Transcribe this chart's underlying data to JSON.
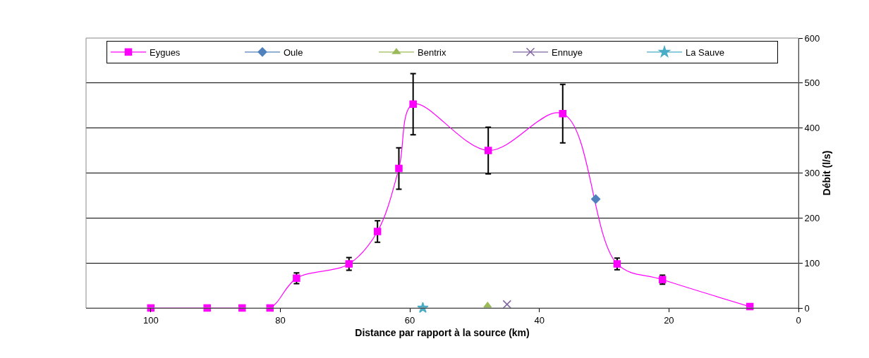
{
  "chart_data": {
    "type": "line",
    "xlabel": "Distance par rapport à la source (km)",
    "ylabel": "Débit (l/s)",
    "xlim": [
      110,
      0
    ],
    "xticks": [
      100,
      80,
      60,
      40,
      20,
      0
    ],
    "ylim": [
      0,
      600
    ],
    "yticks": [
      0,
      100,
      200,
      300,
      400,
      500,
      600
    ],
    "grid": "y",
    "legend": "top",
    "line_style": "solid",
    "series": [
      {
        "name": "Eygues",
        "color": "#ff00ff",
        "marker": "square",
        "x": [
          100,
          91.3,
          85.9,
          81.6,
          77.5,
          69.4,
          65,
          61.7,
          59.5,
          47.9,
          36.4,
          28,
          21,
          7.5
        ],
        "values": [
          0,
          0,
          0,
          0,
          66,
          98,
          170,
          310,
          453,
          350,
          432,
          98,
          63,
          3
        ],
        "errors": [
          null,
          null,
          null,
          null,
          12,
          14,
          24,
          46,
          68,
          52,
          65,
          13,
          10,
          null
        ]
      },
      {
        "name": "Oule",
        "color": "#4f81bd",
        "marker": "diamond",
        "x": [
          31.3
        ],
        "values": [
          242
        ]
      },
      {
        "name": "Bentrix",
        "color": "#9bbb59",
        "marker": "triangle",
        "x": [
          48
        ],
        "values": [
          5
        ]
      },
      {
        "name": "Ennuye",
        "color": "#8064a2",
        "marker": "cross",
        "x": [
          45
        ],
        "values": [
          8
        ]
      },
      {
        "name": "La Sauve",
        "color": "#4bacc6",
        "marker": "star",
        "x": [
          58
        ],
        "values": [
          0
        ]
      }
    ]
  }
}
